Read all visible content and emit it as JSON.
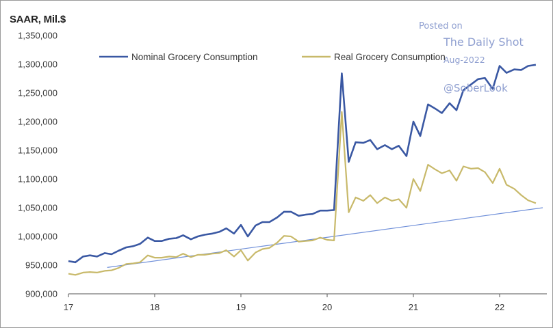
{
  "watermark": {
    "line1": "Posted on",
    "line2": "The Daily Shot",
    "line3": "Aug-2022",
    "line4": "@SoberLook"
  },
  "chart_data": {
    "type": "line",
    "ylabel": "SAAR, Mil.$",
    "xlabel": "",
    "xlim": [
      17,
      22.5
    ],
    "ylim": [
      900000,
      1350000
    ],
    "x_ticks": [
      17,
      18,
      19,
      20,
      21,
      22
    ],
    "x_tick_labels": [
      "17",
      "18",
      "19",
      "20",
      "21",
      "22"
    ],
    "y_ticks": [
      900000,
      950000,
      1000000,
      1050000,
      1100000,
      1150000,
      1200000,
      1250000,
      1300000,
      1350000
    ],
    "y_tick_labels": [
      "900,000",
      "950,000",
      "1,000,000",
      "1,050,000",
      "1,100,000",
      "1,150,000",
      "1,200,000",
      "1,250,000",
      "1,300,000",
      "1,350,000"
    ],
    "legend_position": "top",
    "grid": false,
    "series": [
      {
        "name": "Nominal Grocery Consumption",
        "color": "#3a58a3",
        "points": [
          [
            17.0,
            957000
          ],
          [
            17.08,
            955000
          ],
          [
            17.17,
            965000
          ],
          [
            17.25,
            967000
          ],
          [
            17.33,
            965000
          ],
          [
            17.42,
            971000
          ],
          [
            17.5,
            969000
          ],
          [
            17.58,
            975000
          ],
          [
            17.67,
            981000
          ],
          [
            17.75,
            983000
          ],
          [
            17.83,
            987000
          ],
          [
            17.92,
            998000
          ],
          [
            18.0,
            992000
          ],
          [
            18.08,
            992000
          ],
          [
            18.17,
            996000
          ],
          [
            18.25,
            997000
          ],
          [
            18.33,
            1002000
          ],
          [
            18.42,
            995000
          ],
          [
            18.5,
            1000000
          ],
          [
            18.58,
            1003000
          ],
          [
            18.67,
            1005000
          ],
          [
            18.75,
            1008000
          ],
          [
            18.83,
            1014000
          ],
          [
            18.92,
            1005000
          ],
          [
            19.0,
            1020000
          ],
          [
            19.08,
            1000000
          ],
          [
            19.17,
            1019000
          ],
          [
            19.25,
            1025000
          ],
          [
            19.33,
            1025000
          ],
          [
            19.42,
            1033000
          ],
          [
            19.5,
            1043000
          ],
          [
            19.58,
            1043000
          ],
          [
            19.67,
            1036000
          ],
          [
            19.75,
            1038000
          ],
          [
            19.83,
            1039000
          ],
          [
            19.92,
            1045000
          ],
          [
            20.0,
            1045000
          ],
          [
            20.08,
            1046000
          ],
          [
            20.17,
            1284000
          ],
          [
            20.25,
            1130000
          ],
          [
            20.33,
            1164000
          ],
          [
            20.42,
            1163000
          ],
          [
            20.5,
            1168000
          ],
          [
            20.58,
            1152000
          ],
          [
            20.67,
            1159000
          ],
          [
            20.75,
            1152000
          ],
          [
            20.83,
            1158000
          ],
          [
            20.92,
            1140000
          ],
          [
            21.0,
            1200000
          ],
          [
            21.08,
            1175000
          ],
          [
            21.17,
            1230000
          ],
          [
            21.25,
            1223000
          ],
          [
            21.33,
            1215000
          ],
          [
            21.42,
            1232000
          ],
          [
            21.5,
            1220000
          ],
          [
            21.58,
            1255000
          ],
          [
            21.67,
            1265000
          ],
          [
            21.75,
            1274000
          ],
          [
            21.83,
            1276000
          ],
          [
            21.92,
            1257000
          ],
          [
            22.0,
            1297000
          ],
          [
            22.08,
            1285000
          ],
          [
            22.17,
            1291000
          ],
          [
            22.25,
            1290000
          ],
          [
            22.33,
            1297000
          ],
          [
            22.42,
            1299000
          ]
        ]
      },
      {
        "name": "Real Grocery Consumption",
        "color": "#c8b96a",
        "points": [
          [
            17.0,
            935000
          ],
          [
            17.08,
            933000
          ],
          [
            17.17,
            937000
          ],
          [
            17.25,
            938000
          ],
          [
            17.33,
            937000
          ],
          [
            17.42,
            940000
          ],
          [
            17.5,
            941000
          ],
          [
            17.58,
            945000
          ],
          [
            17.67,
            952000
          ],
          [
            17.75,
            953000
          ],
          [
            17.83,
            955000
          ],
          [
            17.92,
            967000
          ],
          [
            18.0,
            963000
          ],
          [
            18.08,
            963000
          ],
          [
            18.17,
            965000
          ],
          [
            18.25,
            964000
          ],
          [
            18.33,
            970000
          ],
          [
            18.42,
            964000
          ],
          [
            18.5,
            968000
          ],
          [
            18.58,
            968000
          ],
          [
            18.67,
            970000
          ],
          [
            18.75,
            971000
          ],
          [
            18.83,
            976000
          ],
          [
            18.92,
            965000
          ],
          [
            19.0,
            976000
          ],
          [
            19.08,
            958000
          ],
          [
            19.17,
            972000
          ],
          [
            19.25,
            978000
          ],
          [
            19.33,
            980000
          ],
          [
            19.42,
            989000
          ],
          [
            19.5,
            1001000
          ],
          [
            19.58,
            1000000
          ],
          [
            19.67,
            991000
          ],
          [
            19.75,
            992000
          ],
          [
            19.83,
            993000
          ],
          [
            19.92,
            998000
          ],
          [
            20.0,
            994000
          ],
          [
            20.08,
            993000
          ],
          [
            20.17,
            1217000
          ],
          [
            20.25,
            1042000
          ],
          [
            20.33,
            1068000
          ],
          [
            20.42,
            1062000
          ],
          [
            20.5,
            1072000
          ],
          [
            20.58,
            1058000
          ],
          [
            20.67,
            1068000
          ],
          [
            20.75,
            1062000
          ],
          [
            20.83,
            1065000
          ],
          [
            20.92,
            1050000
          ],
          [
            21.0,
            1100000
          ],
          [
            21.08,
            1079000
          ],
          [
            21.17,
            1125000
          ],
          [
            21.25,
            1117000
          ],
          [
            21.33,
            1110000
          ],
          [
            21.42,
            1115000
          ],
          [
            21.5,
            1097000
          ],
          [
            21.58,
            1122000
          ],
          [
            21.67,
            1118000
          ],
          [
            21.75,
            1119000
          ],
          [
            21.83,
            1112000
          ],
          [
            21.92,
            1093000
          ],
          [
            22.0,
            1118000
          ],
          [
            22.08,
            1090000
          ],
          [
            22.17,
            1083000
          ],
          [
            22.25,
            1072000
          ],
          [
            22.33,
            1063000
          ],
          [
            22.42,
            1058000
          ]
        ]
      },
      {
        "color": "#6f8fd9",
        "points": [
          [
            17.45,
            946000
          ],
          [
            22.5,
            1050000
          ]
        ]
      }
    ]
  }
}
